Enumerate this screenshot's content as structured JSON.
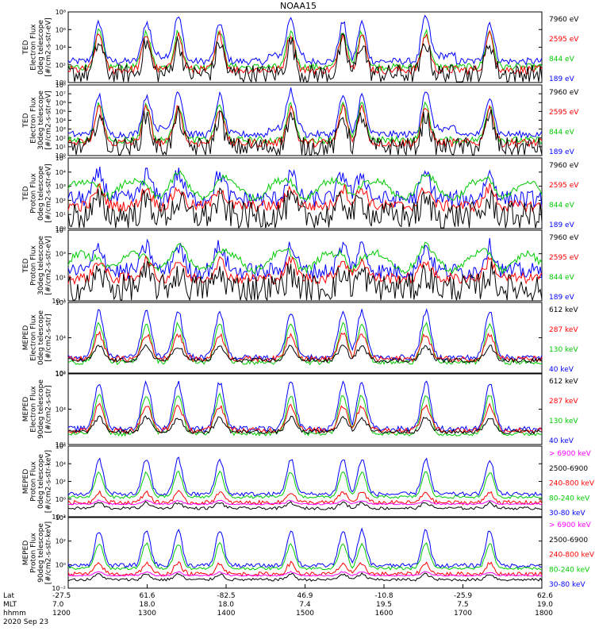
{
  "chart_data": {
    "type": "line",
    "title": "NOAA15",
    "panels": [
      {
        "ylabel": [
          "TED",
          "Electron Flux",
          "0deg telescope",
          "[#/cm2-s-str-eV]"
        ],
        "ytick_labels": [
          "10⁰",
          "10²",
          "10⁴",
          "10⁶",
          "10⁸"
        ],
        "ylim_exp": [
          0,
          8
        ],
        "legend": [
          {
            "label": "7960 eV",
            "color": "#000000"
          },
          {
            "label": "2595 eV",
            "color": "#ff0000"
          },
          {
            "label": "844 eV",
            "color": "#00cc00"
          },
          {
            "label": "189 eV",
            "color": "#0000ff"
          }
        ]
      },
      {
        "ylabel": [
          "TED",
          "Electron Flux",
          "30deg telescope",
          "[#/cm2-s-str-eV]"
        ],
        "ytick_labels": [
          "10⁰",
          "10¹",
          "10²",
          "10³",
          "10⁴",
          "10⁵",
          "10⁶",
          "10⁷",
          "10⁸"
        ],
        "ylim_exp": [
          0,
          8
        ],
        "legend": [
          {
            "label": "7960 eV",
            "color": "#000000"
          },
          {
            "label": "2595 eV",
            "color": "#ff0000"
          },
          {
            "label": "844 eV",
            "color": "#00cc00"
          },
          {
            "label": "189 eV",
            "color": "#0000ff"
          }
        ]
      },
      {
        "ylabel": [
          "TED",
          "Proton Flux",
          "0deg telescope",
          "[#/cm2-s-str-eV]"
        ],
        "ytick_labels": [
          "10⁰",
          "10¹",
          "10²",
          "10³",
          "10⁴",
          "10⁵"
        ],
        "ylim_exp": [
          0,
          5
        ],
        "legend": [
          {
            "label": "7960 eV",
            "color": "#000000"
          },
          {
            "label": "2595 eV",
            "color": "#ff0000"
          },
          {
            "label": "844 eV",
            "color": "#00cc00"
          },
          {
            "label": "189 eV",
            "color": "#0000ff"
          }
        ]
      },
      {
        "ylabel": [
          "TED",
          "Proton Flux",
          "30deg telescope",
          "[#/cm2-s-str-eV]"
        ],
        "ytick_labels": [
          "10⁻¹",
          "10¹",
          "10³",
          "10⁵"
        ],
        "ylim_exp": [
          -1,
          5
        ],
        "legend": [
          {
            "label": "7960 eV",
            "color": "#000000"
          },
          {
            "label": "2595 eV",
            "color": "#ff0000"
          },
          {
            "label": "844 eV",
            "color": "#00cc00"
          },
          {
            "label": "189 eV",
            "color": "#0000ff"
          }
        ]
      },
      {
        "ylabel": [
          "MEPED",
          "Electron Flux",
          "0deg telescope",
          "[#/cm2-s-str]"
        ],
        "ytick_labels": [
          "10²",
          "10⁴",
          "10⁶"
        ],
        "ylim_exp": [
          1,
          7
        ],
        "legend": [
          {
            "label": "612 keV",
            "color": "#000000"
          },
          {
            "label": "287 keV",
            "color": "#ff0000"
          },
          {
            "label": "130 keV",
            "color": "#00cc00"
          },
          {
            "label": "40 keV",
            "color": "#0000ff"
          }
        ]
      },
      {
        "ylabel": [
          "MEPED",
          "Electron Flux",
          "90deg telescope",
          "[#/cm2-s-str]"
        ],
        "ytick_labels": [
          "10²",
          "10⁴",
          "10⁶"
        ],
        "ylim_exp": [
          1,
          7
        ],
        "legend": [
          {
            "label": "612 keV",
            "color": "#000000"
          },
          {
            "label": "287 keV",
            "color": "#ff0000"
          },
          {
            "label": "130 keV",
            "color": "#00cc00"
          },
          {
            "label": "40 keV",
            "color": "#0000ff"
          }
        ]
      },
      {
        "ylabel": [
          "MEPED",
          "Proton Flux",
          "0deg telescope",
          "[#/cm2-s-str-keV]"
        ],
        "ytick_labels": [
          "10⁻²",
          "10⁰",
          "10²",
          "10⁴",
          "10⁶"
        ],
        "ylim_exp": [
          -2,
          7
        ],
        "legend": [
          {
            "label": "> 6900 keV",
            "color": "#ff00ff"
          },
          {
            "label": "2500-6900",
            "color": "#000000"
          },
          {
            "label": "240-800 keV",
            "color": "#ff0000"
          },
          {
            "label": "80-240 keV",
            "color": "#00cc00"
          },
          {
            "label": "30-80 keV",
            "color": "#0000ff"
          }
        ]
      },
      {
        "ylabel": [
          "MEPED",
          "Proton Flux",
          "90deg telescope",
          "[#/cm2-s-str-keV]"
        ],
        "ytick_labels": [
          "10⁻²",
          "10⁰",
          "10²",
          "10⁴"
        ],
        "ylim_exp": [
          -2,
          6
        ],
        "legend": [
          {
            "label": "> 6900 keV",
            "color": "#ff00ff"
          },
          {
            "label": "2500-6900",
            "color": "#000000"
          },
          {
            "label": "240-800 keV",
            "color": "#ff0000"
          },
          {
            "label": "80-240 keV",
            "color": "#00cc00"
          },
          {
            "label": "30-80 keV",
            "color": "#0000ff"
          }
        ]
      }
    ],
    "x_axis": {
      "row_labels": [
        "Lat",
        "MLT",
        "hhmm",
        "2020 Sep 23"
      ],
      "ticks": [
        {
          "lat": "-27.5",
          "mlt": "7.0",
          "hhmm": "1200"
        },
        {
          "lat": "61.6",
          "mlt": "18.0",
          "hhmm": "1300"
        },
        {
          "lat": "-82.5",
          "mlt": "18.0",
          "hhmm": "1400"
        },
        {
          "lat": "46.9",
          "mlt": "7.4",
          "hhmm": "1500"
        },
        {
          "lat": "-10.8",
          "mlt": "19.5",
          "hhmm": "1600"
        },
        {
          "lat": "-25.9",
          "mlt": "7.5",
          "hhmm": "1700"
        },
        {
          "lat": "62.6",
          "mlt": "19.0",
          "hhmm": "1800"
        }
      ]
    }
  }
}
